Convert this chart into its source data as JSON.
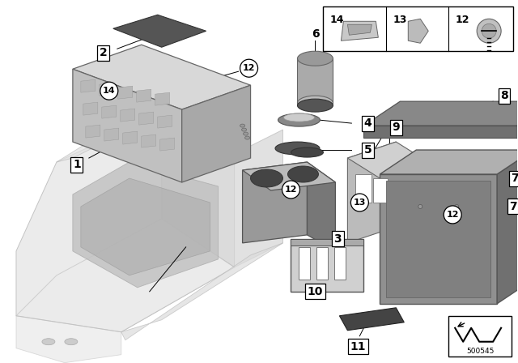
{
  "bg_color": "#ffffff",
  "console_color": "#e0e0e0",
  "console_dark": "#c8c8c8",
  "console_shadow": "#b8b8b8",
  "part1_top": "#c8c8c8",
  "part1_front": "#909090",
  "part1_face_detail": "#d5d5d5",
  "part2_color": "#555555",
  "part3_color": "#888888",
  "part6_color": "#999999",
  "part6_cap": "#666666",
  "part78_color": "#909090",
  "part78_side": "#707070",
  "part78_top": "#aaaaaa",
  "disc_dark": "#555555",
  "disc_light": "#cccccc",
  "label_fontsize": 9,
  "bold_label_fontsize": 10,
  "small_fontsize": 7,
  "note_fontsize": 6.5,
  "line_color": "#000000"
}
